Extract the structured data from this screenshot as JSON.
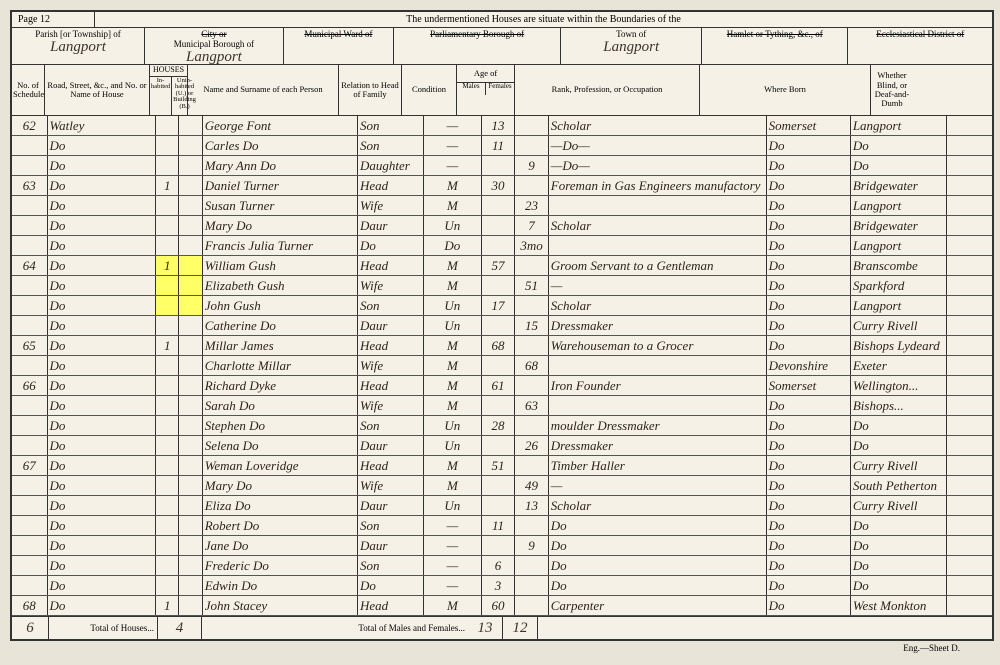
{
  "page_label": "Page 12",
  "top_text": "The undermentioned Houses are situate within the Boundaries of the",
  "headers": {
    "parish_label": "Parish [or Township] of",
    "parish_value": "Langport",
    "borough_label_strike": "City or",
    "borough_label": "Municipal Borough of",
    "borough_value": "Langport",
    "ward_label": "Municipal Ward of",
    "parl_label": "Parliamentary Borough of",
    "town_label": "Town of",
    "town_value": "Langport",
    "hamlet_label": "Hamlet or Tything, &c., of",
    "eccl_label": "Ecclesiastical District of"
  },
  "columns": {
    "sched": "No. of Schedule",
    "road": "Road, Street, &c., and No. or Name of House",
    "houses": "HOUSES",
    "houses_in": "In-habited",
    "houses_un": "Unin-habited (U.) or Building (B.)",
    "name": "Name and Surname of each Person",
    "relation": "Relation to Head of Family",
    "condition": "Condition",
    "age": "Age of",
    "age_m": "Males",
    "age_f": "Females",
    "rank": "Rank, Profession, or Occupation",
    "born": "Where Born",
    "blind": "Whether Blind, or Deaf-and-Dumb"
  },
  "highlight_color": "#ffff66",
  "rows": [
    {
      "sched": "62",
      "road": "Watley",
      "h1": "",
      "h2": "",
      "name": "George Font",
      "rel": "Son",
      "cond": "—",
      "am": "13",
      "af": "",
      "rank": "Scholar",
      "born1": "Somerset",
      "born2": "Langport",
      "bl": ""
    },
    {
      "sched": "",
      "road": "Do",
      "h1": "",
      "h2": "",
      "name": "Carles Do",
      "rel": "Son",
      "cond": "—",
      "am": "11",
      "af": "",
      "rank": "—Do—",
      "born1": "Do",
      "born2": "Do",
      "bl": ""
    },
    {
      "sched": "",
      "road": "Do",
      "h1": "",
      "h2": "",
      "name": "Mary Ann Do",
      "rel": "Daughter",
      "cond": "—",
      "am": "",
      "af": "9",
      "rank": "—Do—",
      "born1": "Do",
      "born2": "Do",
      "bl": ""
    },
    {
      "sched": "63",
      "road": "Do",
      "h1": "1",
      "h2": "",
      "name": "Daniel Turner",
      "rel": "Head",
      "cond": "M",
      "am": "30",
      "af": "",
      "rank": "Foreman in Gas Engineers manufactory",
      "born1": "Do",
      "born2": "Bridgewater",
      "bl": ""
    },
    {
      "sched": "",
      "road": "Do",
      "h1": "",
      "h2": "",
      "name": "Susan Turner",
      "rel": "Wife",
      "cond": "M",
      "am": "",
      "af": "23",
      "rank": "",
      "born1": "Do",
      "born2": "Langport",
      "bl": ""
    },
    {
      "sched": "",
      "road": "Do",
      "h1": "",
      "h2": "",
      "name": "Mary Do",
      "rel": "Daur",
      "cond": "Un",
      "am": "",
      "af": "7",
      "rank": "Scholar",
      "born1": "Do",
      "born2": "Bridgewater",
      "bl": ""
    },
    {
      "sched": "",
      "road": "Do",
      "h1": "",
      "h2": "",
      "name": "Francis Julia Turner",
      "rel": "Do",
      "cond": "Do",
      "am": "",
      "af": "3mo",
      "rank": "",
      "born1": "Do",
      "born2": "Langport",
      "bl": ""
    },
    {
      "sched": "64",
      "road": "Do",
      "h1": "1",
      "h2": "",
      "name": "William Gush",
      "rel": "Head",
      "cond": "M",
      "am": "57",
      "af": "",
      "rank": "Groom Servant to a Gentleman",
      "born1": "Do",
      "born2": "Branscombe",
      "bl": "",
      "hl": true
    },
    {
      "sched": "",
      "road": "Do",
      "h1": "",
      "h2": "",
      "name": "Elizabeth Gush",
      "rel": "Wife",
      "cond": "M",
      "am": "",
      "af": "51",
      "rank": "—",
      "born1": "Do",
      "born2": "Sparkford",
      "bl": "",
      "hl": true
    },
    {
      "sched": "",
      "road": "Do",
      "h1": "",
      "h2": "",
      "name": "John Gush",
      "rel": "Son",
      "cond": "Un",
      "am": "17",
      "af": "",
      "rank": "Scholar",
      "born1": "Do",
      "born2": "Langport",
      "bl": "",
      "hl": true
    },
    {
      "sched": "",
      "road": "Do",
      "h1": "",
      "h2": "",
      "name": "Catherine Do",
      "rel": "Daur",
      "cond": "Un",
      "am": "",
      "af": "15",
      "rank": "Dressmaker",
      "born1": "Do",
      "born2": "Curry Rivell",
      "bl": ""
    },
    {
      "sched": "65",
      "road": "Do",
      "h1": "1",
      "h2": "",
      "name": "Millar James",
      "rel": "Head",
      "cond": "M",
      "am": "68",
      "af": "",
      "rank": "Warehouseman to a Grocer",
      "born1": "Do",
      "born2": "Bishops Lydeard",
      "bl": ""
    },
    {
      "sched": "",
      "road": "Do",
      "h1": "",
      "h2": "",
      "name": "Charlotte Millar",
      "rel": "Wife",
      "cond": "M",
      "am": "",
      "af": "68",
      "rank": "",
      "born1": "Devonshire",
      "born2": "Exeter",
      "bl": ""
    },
    {
      "sched": "66",
      "road": "Do",
      "h1": "",
      "h2": "",
      "name": "Richard Dyke",
      "rel": "Head",
      "cond": "M",
      "am": "61",
      "af": "",
      "rank": "Iron Founder",
      "born1": "Somerset",
      "born2": "Wellington...",
      "bl": ""
    },
    {
      "sched": "",
      "road": "Do",
      "h1": "",
      "h2": "",
      "name": "Sarah Do",
      "rel": "Wife",
      "cond": "M",
      "am": "",
      "af": "63",
      "rank": "",
      "born1": "Do",
      "born2": "Bishops...",
      "bl": ""
    },
    {
      "sched": "",
      "road": "Do",
      "h1": "",
      "h2": "",
      "name": "Stephen Do",
      "rel": "Son",
      "cond": "Un",
      "am": "28",
      "af": "",
      "rank": "moulder Dressmaker",
      "born1": "Do",
      "born2": "Do",
      "bl": ""
    },
    {
      "sched": "",
      "road": "Do",
      "h1": "",
      "h2": "",
      "name": "Selena Do",
      "rel": "Daur",
      "cond": "Un",
      "am": "",
      "af": "26",
      "rank": "Dressmaker",
      "born1": "Do",
      "born2": "Do",
      "bl": ""
    },
    {
      "sched": "67",
      "road": "Do",
      "h1": "",
      "h2": "",
      "name": "Weman Loveridge",
      "rel": "Head",
      "cond": "M",
      "am": "51",
      "af": "",
      "rank": "Timber Haller",
      "born1": "Do",
      "born2": "Curry Rivell",
      "bl": ""
    },
    {
      "sched": "",
      "road": "Do",
      "h1": "",
      "h2": "",
      "name": "Mary Do",
      "rel": "Wife",
      "cond": "M",
      "am": "",
      "af": "49",
      "rank": "—",
      "born1": "Do",
      "born2": "South Petherton",
      "bl": ""
    },
    {
      "sched": "",
      "road": "Do",
      "h1": "",
      "h2": "",
      "name": "Eliza Do",
      "rel": "Daur",
      "cond": "Un",
      "am": "",
      "af": "13",
      "rank": "Scholar",
      "born1": "Do",
      "born2": "Curry Rivell",
      "bl": ""
    },
    {
      "sched": "",
      "road": "Do",
      "h1": "",
      "h2": "",
      "name": "Robert Do",
      "rel": "Son",
      "cond": "—",
      "am": "11",
      "af": "",
      "rank": "Do",
      "born1": "Do",
      "born2": "Do",
      "bl": ""
    },
    {
      "sched": "",
      "road": "Do",
      "h1": "",
      "h2": "",
      "name": "Jane Do",
      "rel": "Daur",
      "cond": "—",
      "am": "",
      "af": "9",
      "rank": "Do",
      "born1": "Do",
      "born2": "Do",
      "bl": ""
    },
    {
      "sched": "",
      "road": "Do",
      "h1": "",
      "h2": "",
      "name": "Frederic Do",
      "rel": "Son",
      "cond": "—",
      "am": "6",
      "af": "",
      "rank": "Do",
      "born1": "Do",
      "born2": "Do",
      "bl": ""
    },
    {
      "sched": "",
      "road": "Do",
      "h1": "",
      "h2": "",
      "name": "Edwin Do",
      "rel": "Do",
      "cond": "—",
      "am": "3",
      "af": "",
      "rank": "Do",
      "born1": "Do",
      "born2": "Do",
      "bl": ""
    },
    {
      "sched": "68",
      "road": "Do",
      "h1": "1",
      "h2": "",
      "name": "John Stacey",
      "rel": "Head",
      "cond": "M",
      "am": "60",
      "af": "",
      "rank": "Carpenter",
      "born1": "Do",
      "born2": "West Monkton",
      "bl": ""
    }
  ],
  "totals": {
    "houses_label": "Total of Houses...",
    "left_num": "6",
    "houses_num": "4",
    "mf_label": "Total of Males and Females...",
    "males": "13",
    "females": "12"
  },
  "engraver": "Eng.—Sheet D."
}
